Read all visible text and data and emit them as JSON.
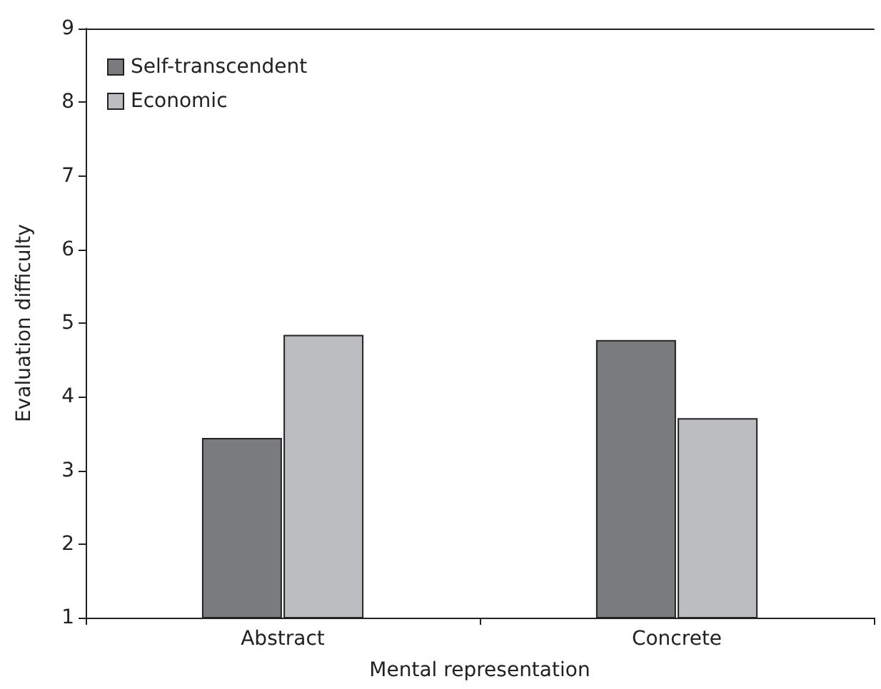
{
  "chart_data": {
    "type": "bar",
    "xlabel": "Mental representation",
    "ylabel": "Evaluation difficulty",
    "categories": [
      "Abstract",
      "Concrete"
    ],
    "series": [
      {
        "name": "Self-transcendent",
        "color": "#7a7b7f",
        "values": [
          3.44,
          4.77
        ]
      },
      {
        "name": "Economic",
        "color": "#bcbdc1",
        "values": [
          4.84,
          3.71
        ]
      }
    ],
    "ylim": [
      1,
      9
    ],
    "yticks": [
      1,
      2,
      3,
      4,
      5,
      6,
      7,
      8,
      9
    ],
    "grid": false,
    "legend": "top left"
  }
}
